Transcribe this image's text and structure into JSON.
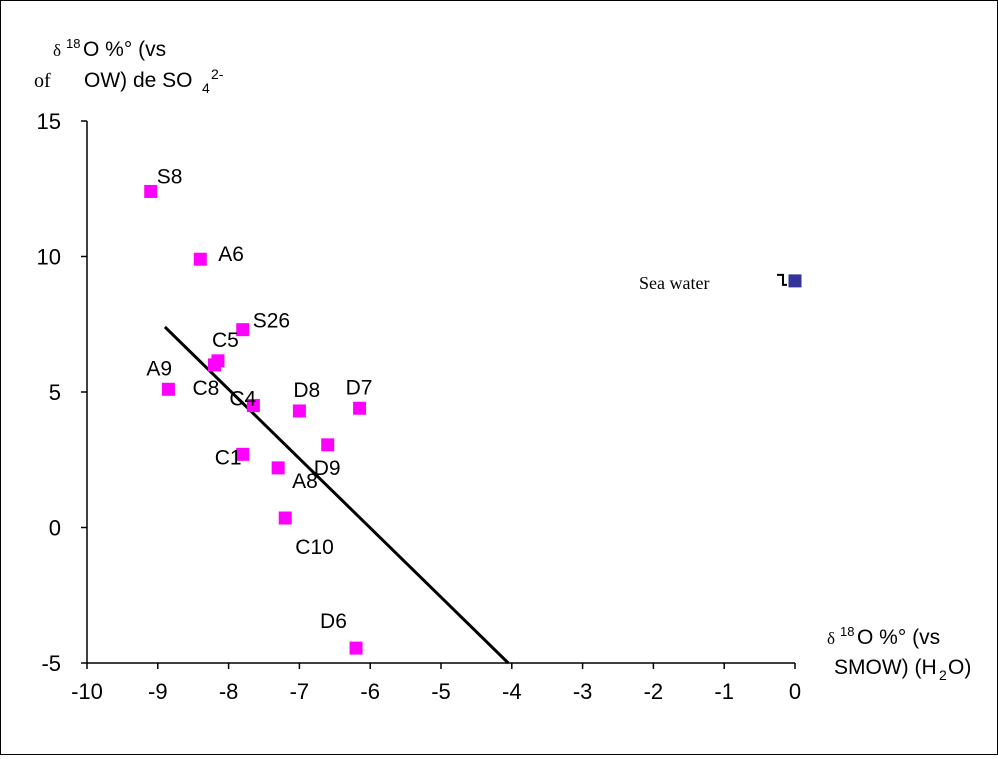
{
  "chart_data": {
    "type": "scatter",
    "y_axis_title": {
      "line1_symbol": "δ",
      "line1_sup": "18",
      "line1_rest": "O %°   (vs",
      "line2_prefix": "of",
      "line2_main": "OW) de SO",
      "line2_sub": "4",
      "line2_sup": "2-"
    },
    "x_axis_title": {
      "line1_symbol": "δ",
      "line1_sup": "18",
      "line1_rest": "O %°   (vs",
      "line2_main": "SMOW) (H",
      "line2_sub": "2",
      "line2_end": "O)"
    },
    "xlim": [
      -10,
      0
    ],
    "ylim": [
      -5,
      15
    ],
    "x_ticks": [
      "-10",
      "-9",
      "-8",
      "-7",
      "-6",
      "-5",
      "-4",
      "-3",
      "-2",
      "-1",
      "0"
    ],
    "y_ticks": [
      "15",
      "10",
      "5",
      "0",
      "-5"
    ],
    "points": [
      {
        "label": "S8",
        "x": -9.1,
        "y": 12.4,
        "color": "#ff00ff"
      },
      {
        "label": "A6",
        "x": -8.4,
        "y": 9.9,
        "color": "#ff00ff"
      },
      {
        "label": "S26",
        "x": -7.8,
        "y": 7.3,
        "color": "#ff00ff"
      },
      {
        "label": "C5",
        "x": -8.15,
        "y": 6.15,
        "color": "#ff00ff"
      },
      {
        "label": "C8",
        "x": -8.2,
        "y": 6.0,
        "color": "#ff00ff"
      },
      {
        "label": "A9",
        "x": -8.85,
        "y": 5.1,
        "color": "#ff00ff"
      },
      {
        "label": "C4",
        "x": -7.65,
        "y": 4.5,
        "color": "#ff00ff"
      },
      {
        "label": "D8",
        "x": -7.0,
        "y": 4.3,
        "color": "#ff00ff"
      },
      {
        "label": "D7",
        "x": -6.15,
        "y": 4.4,
        "color": "#ff00ff"
      },
      {
        "label": "D9",
        "x": -6.6,
        "y": 3.05,
        "color": "#ff00ff"
      },
      {
        "label": "C1",
        "x": -7.8,
        "y": 2.7,
        "color": "#ff00ff"
      },
      {
        "label": "A8",
        "x": -7.3,
        "y": 2.2,
        "color": "#ff00ff"
      },
      {
        "label": "C10",
        "x": -7.2,
        "y": 0.35,
        "color": "#ff00ff"
      },
      {
        "label": "D6",
        "x": -6.2,
        "y": -4.45,
        "color": "#ff00ff"
      },
      {
        "label": "Sea water",
        "x": 0,
        "y": 9.1,
        "color": "#333399"
      }
    ],
    "trend_line": {
      "x": [
        -8.9,
        -4.05
      ],
      "y": [
        7.4,
        -5
      ]
    },
    "grid": false,
    "legend": "none"
  }
}
